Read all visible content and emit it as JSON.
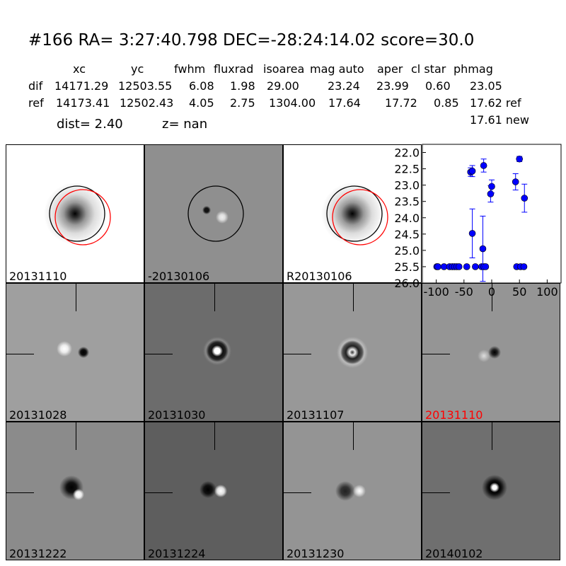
{
  "header": {
    "title": "#166   RA= 3:27:40.798 DEC=-28:24:14.02       score=30.0",
    "columns": [
      "xc",
      "yc",
      "fwhm",
      "fluxrad",
      "isoarea",
      "mag auto",
      "aper",
      "cl star",
      "phmag"
    ],
    "rows": [
      {
        "label": "dif",
        "values": [
          "14171.29",
          "12503.55",
          "6.08",
          "1.98",
          "29.00",
          "23.24",
          "23.99",
          "0.60",
          "23.05"
        ]
      },
      {
        "label": "ref",
        "values": [
          "14173.41",
          "12502.43",
          "4.05",
          "2.75",
          "1304.00",
          "17.64",
          "17.72",
          "0.85",
          "17.62 ref"
        ]
      }
    ],
    "new_phmag": "17.61 new",
    "dist_text": "dist=  2.40",
    "z_text": "z=   nan"
  },
  "panels": [
    {
      "label": "20131110",
      "kind": "ref"
    },
    {
      "label": "-20130106",
      "kind": "diff"
    },
    {
      "label": "R20130106",
      "kind": "ref"
    },
    {
      "label": "20131028",
      "kind": "stamp"
    },
    {
      "label": "20131030",
      "kind": "stamp"
    },
    {
      "label": "20131107",
      "kind": "stamp"
    },
    {
      "label": "20131110",
      "kind": "stamp",
      "label_color": "#ff0000"
    },
    {
      "label": "20131222",
      "kind": "stamp"
    },
    {
      "label": "20131224",
      "kind": "stamp"
    },
    {
      "label": "20131230",
      "kind": "stamp"
    },
    {
      "label": "20140102",
      "kind": "stamp"
    }
  ],
  "chart_data": {
    "type": "scatter",
    "title": "",
    "xlabel": "",
    "ylabel": "",
    "xlim": [
      -125,
      125
    ],
    "ylim": [
      26.0,
      21.75
    ],
    "y_inverted": true,
    "xticks": [
      "-100",
      "-50",
      "0",
      "50",
      "100"
    ],
    "yticks": [
      "22.0",
      "22.5",
      "23.0",
      "23.5",
      "24.0",
      "24.5",
      "25.0",
      "25.5",
      "26.0"
    ],
    "color": "#0000ff",
    "points": [
      {
        "x": -99,
        "y": 25.5
      },
      {
        "x": -97,
        "y": 25.5
      },
      {
        "x": -86,
        "y": 25.5
      },
      {
        "x": -76,
        "y": 25.5
      },
      {
        "x": -71,
        "y": 25.5
      },
      {
        "x": -67,
        "y": 25.5
      },
      {
        "x": -63,
        "y": 25.5
      },
      {
        "x": -59,
        "y": 25.5
      },
      {
        "x": -45,
        "y": 25.5
      },
      {
        "x": -29.5,
        "y": 25.5
      },
      {
        "x": -18,
        "y": 25.5
      },
      {
        "x": -14,
        "y": 25.5
      },
      {
        "x": -11,
        "y": 25.5
      },
      {
        "x": -38,
        "y": 22.6,
        "err": 0.13
      },
      {
        "x": -35,
        "y": 22.57,
        "err": 0.17
      },
      {
        "x": -14.5,
        "y": 22.4,
        "err": 0.2
      },
      {
        "x": -35,
        "y": 24.48,
        "err": 0.75
      },
      {
        "x": -16,
        "y": 24.95,
        "err": 1.0
      },
      {
        "x": -2,
        "y": 23.27,
        "err": 0.25
      },
      {
        "x": 0,
        "y": 23.04,
        "err": 0.2
      },
      {
        "x": 43,
        "y": 22.9,
        "err": 0.25
      },
      {
        "x": 50,
        "y": 22.2,
        "err": 0.08
      },
      {
        "x": 59,
        "y": 23.4,
        "err": 0.43
      },
      {
        "x": 45,
        "y": 25.5
      },
      {
        "x": 52,
        "y": 25.5
      },
      {
        "x": 58,
        "y": 25.5
      }
    ]
  }
}
